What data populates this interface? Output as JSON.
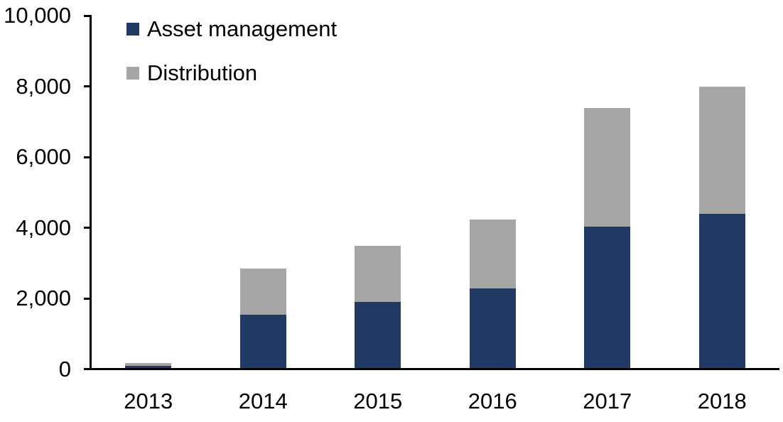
{
  "chart_data": {
    "type": "bar",
    "stacked": true,
    "title": "",
    "xlabel": "",
    "ylabel": "",
    "categories": [
      "2013",
      "2014",
      "2015",
      "2016",
      "2017",
      "2018"
    ],
    "series": [
      {
        "name": "Asset management",
        "color": "#213A63",
        "values": [
          100,
          1550,
          1900,
          2300,
          4050,
          4400
        ]
      },
      {
        "name": "Distribution",
        "color": "#A6A6A6",
        "values": [
          90,
          1300,
          1600,
          1950,
          3350,
          3600
        ]
      }
    ],
    "totals": [
      190,
      2850,
      3500,
      4250,
      7400,
      8000
    ],
    "ylim": [
      0,
      10000
    ],
    "yticks": [
      {
        "value": 0,
        "label": "0"
      },
      {
        "value": 2000,
        "label": "2,000"
      },
      {
        "value": 4000,
        "label": "4,000"
      },
      {
        "value": 6000,
        "label": "6,000"
      },
      {
        "value": 8000,
        "label": "8,000"
      },
      {
        "value": 10000,
        "label": "10,000"
      }
    ],
    "legend_position": "top-left",
    "grid": false,
    "axis_color": "#000000",
    "background_color": "#FFFFFF"
  }
}
